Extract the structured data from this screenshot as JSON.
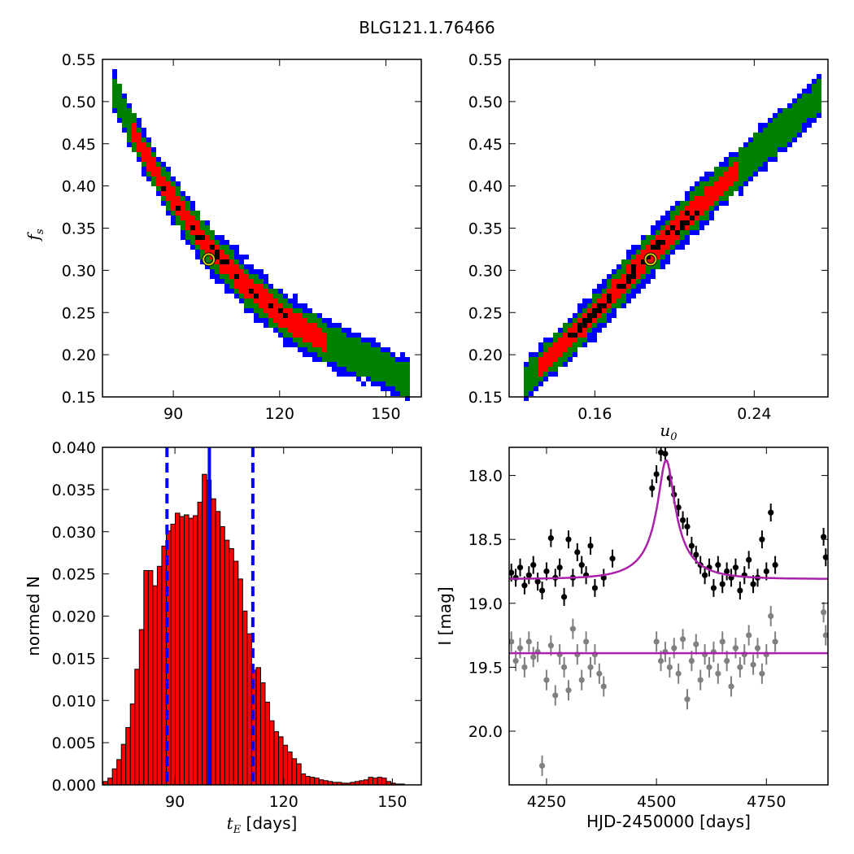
{
  "figure": {
    "title": "BLG121.1.76466"
  },
  "chart_data": [
    {
      "id": "fs_vs_tE",
      "type": "heatmap",
      "xlabel": "",
      "ylabel": "f_s",
      "xlim": [
        70,
        160
      ],
      "ylim": [
        0.15,
        0.55
      ],
      "xticks": [
        90,
        120,
        150
      ],
      "xtick_labels": [
        "90",
        "120",
        "150"
      ],
      "yticks": [
        0.15,
        0.2,
        0.25,
        0.3,
        0.35,
        0.4,
        0.45,
        0.5,
        0.55
      ],
      "ytick_labels": [
        "0.15",
        "0.20",
        "0.25",
        "0.30",
        "0.35",
        "0.40",
        "0.45",
        "0.50",
        "0.55"
      ],
      "ridge": {
        "x": [
          74,
          78,
          82,
          86,
          90,
          94,
          98,
          102,
          106,
          110,
          114,
          118,
          122,
          126,
          130,
          134,
          138,
          142,
          146,
          150,
          154,
          157
        ],
        "y": [
          0.505,
          0.47,
          0.44,
          0.41,
          0.385,
          0.36,
          0.338,
          0.32,
          0.302,
          0.285,
          0.27,
          0.256,
          0.243,
          0.232,
          0.222,
          0.213,
          0.205,
          0.198,
          0.191,
          0.184,
          0.175,
          0.168
        ]
      },
      "regions": [
        {
          "name": "3 sigma",
          "color": "#0000ff"
        },
        {
          "name": "2 sigma",
          "color": "#008000"
        },
        {
          "name": "1 sigma",
          "color": "#ff0000"
        },
        {
          "name": "best",
          "color": "#000000"
        }
      ],
      "best_fit": {
        "x": 100,
        "y": 0.313
      }
    },
    {
      "id": "fs_vs_u0",
      "type": "heatmap",
      "xlabel": "u_0",
      "ylabel": "",
      "xlim": [
        0.117,
        0.277
      ],
      "ylim": [
        0.15,
        0.55
      ],
      "xticks": [
        0.16,
        0.24
      ],
      "xtick_labels": [
        "0.16",
        "0.24"
      ],
      "yticks": [
        0.15,
        0.2,
        0.25,
        0.3,
        0.35,
        0.4,
        0.45,
        0.5,
        0.55
      ],
      "ytick_labels": [
        "0.15",
        "0.20",
        "0.25",
        "0.30",
        "0.35",
        "0.40",
        "0.45",
        "0.50",
        "0.55"
      ],
      "ridge": {
        "x": [
          0.125,
          0.135,
          0.145,
          0.155,
          0.165,
          0.175,
          0.185,
          0.195,
          0.205,
          0.215,
          0.225,
          0.235,
          0.245,
          0.255,
          0.265,
          0.272
        ],
        "y": [
          0.168,
          0.19,
          0.213,
          0.237,
          0.262,
          0.287,
          0.313,
          0.336,
          0.359,
          0.382,
          0.404,
          0.425,
          0.447,
          0.468,
          0.49,
          0.505
        ]
      },
      "regions": [
        {
          "name": "3 sigma",
          "color": "#0000ff"
        },
        {
          "name": "2 sigma",
          "color": "#008000"
        },
        {
          "name": "1 sigma",
          "color": "#ff0000"
        },
        {
          "name": "best",
          "color": "#000000"
        }
      ],
      "best_fit": {
        "x": 0.188,
        "y": 0.313
      }
    },
    {
      "id": "tE_histogram",
      "type": "bar",
      "xlabel": "t_E [days]",
      "ylabel": "normed N",
      "xlim": [
        70,
        158
      ],
      "ylim": [
        0.0,
        0.04
      ],
      "xticks": [
        90,
        120,
        150
      ],
      "xtick_labels": [
        "90",
        "120",
        "150"
      ],
      "yticks": [
        0.0,
        0.005,
        0.01,
        0.015,
        0.02,
        0.025,
        0.03,
        0.035,
        0.04
      ],
      "ytick_labels": [
        "0.000",
        "0.005",
        "0.010",
        "0.015",
        "0.020",
        "0.025",
        "0.030",
        "0.035",
        "0.040"
      ],
      "bin_start": 70.25,
      "bin_width": 1.24,
      "values": [
        0.0004,
        0.0008,
        0.0019,
        0.003,
        0.0048,
        0.0068,
        0.0096,
        0.0137,
        0.0184,
        0.0254,
        0.0254,
        0.0236,
        0.0259,
        0.0283,
        0.0301,
        0.0309,
        0.0322,
        0.0318,
        0.032,
        0.0316,
        0.0319,
        0.0335,
        0.0368,
        0.0361,
        0.0339,
        0.0324,
        0.0306,
        0.029,
        0.028,
        0.0265,
        0.0244,
        0.0206,
        0.0179,
        0.0136,
        0.0139,
        0.0121,
        0.0098,
        0.0076,
        0.0063,
        0.0057,
        0.0047,
        0.0039,
        0.0031,
        0.0025,
        0.0013,
        0.001,
        0.0009,
        0.0008,
        0.0006,
        0.0005,
        0.0004,
        0.0003,
        0.0003,
        0.0002,
        0.0002,
        0.0003,
        0.0004,
        0.0005,
        0.0006,
        0.0009,
        0.0008,
        0.0009,
        0.0008,
        0.0004,
        0.0002,
        0.0001,
        0.0001
      ],
      "bar_color": "#ff0000",
      "lines": [
        {
          "name": "median",
          "x": 99.5,
          "style": "solid",
          "color": "#0000ff"
        },
        {
          "name": "lower",
          "x": 87.8,
          "style": "dashed",
          "color": "#0000ff"
        },
        {
          "name": "upper",
          "x": 111.5,
          "style": "dashed",
          "color": "#0000ff"
        }
      ]
    },
    {
      "id": "light_curve",
      "type": "scatter",
      "xlabel": "HJD-2450000 [days]",
      "ylabel": "I [mag]",
      "xlim": [
        4165,
        4890
      ],
      "ylim": [
        20.42,
        17.78
      ],
      "y_inverted": true,
      "xticks": [
        4250,
        4500,
        4750
      ],
      "xtick_labels": [
        "4250",
        "4500",
        "4750"
      ],
      "yticks": [
        18.0,
        18.5,
        19.0,
        19.5,
        20.0
      ],
      "ytick_labels": [
        "18.0",
        "18.5",
        "19.0",
        "19.5",
        "20.0"
      ],
      "model": {
        "color": "#aa22aa",
        "baseline": 18.81,
        "peak": 17.88,
        "t0": 4522,
        "tE": 100,
        "u0": 0.188
      },
      "model_flat": {
        "color": "#aa22aa",
        "value": 19.39
      },
      "series": [
        {
          "color": "#000000",
          "x": [
            4170,
            4180,
            4190,
            4200,
            4210,
            4220,
            4230,
            4240,
            4250,
            4260,
            4270,
            4280,
            4290,
            4300,
            4310,
            4320,
            4330,
            4340,
            4350,
            4360,
            4380,
            4400,
            4490,
            4500,
            4510,
            4520,
            4530,
            4540,
            4550,
            4560,
            4570,
            4580,
            4590,
            4600,
            4610,
            4620,
            4630,
            4640,
            4650,
            4660,
            4670,
            4680,
            4690,
            4700,
            4710,
            4720,
            4730,
            4740,
            4750,
            4760,
            4770,
            4880,
            4885
          ],
          "y": [
            18.76,
            18.8,
            18.72,
            18.86,
            18.78,
            18.7,
            18.83,
            18.9,
            18.75,
            18.49,
            18.8,
            18.72,
            18.95,
            18.5,
            18.8,
            18.6,
            18.7,
            18.78,
            18.55,
            18.88,
            18.8,
            18.65,
            18.1,
            17.99,
            17.82,
            17.83,
            18.02,
            18.15,
            18.25,
            18.35,
            18.4,
            18.55,
            18.62,
            18.7,
            18.78,
            18.72,
            18.88,
            18.7,
            18.85,
            18.75,
            18.8,
            18.72,
            18.9,
            18.78,
            18.66,
            18.85,
            18.8,
            18.5,
            18.75,
            18.29,
            18.7,
            18.48,
            18.64
          ],
          "err": 0.07
        },
        {
          "color": "#808080",
          "x": [
            4170,
            4180,
            4190,
            4200,
            4210,
            4220,
            4230,
            4240,
            4250,
            4260,
            4270,
            4280,
            4290,
            4300,
            4310,
            4320,
            4330,
            4340,
            4350,
            4360,
            4370,
            4380,
            4500,
            4510,
            4520,
            4530,
            4540,
            4550,
            4560,
            4570,
            4580,
            4590,
            4600,
            4610,
            4620,
            4630,
            4640,
            4650,
            4660,
            4670,
            4680,
            4690,
            4700,
            4710,
            4720,
            4730,
            4740,
            4750,
            4760,
            4770,
            4880,
            4885
          ],
          "y": [
            19.3,
            19.45,
            19.35,
            19.5,
            19.3,
            19.42,
            19.38,
            20.27,
            19.6,
            19.33,
            19.72,
            19.4,
            19.5,
            19.68,
            19.2,
            19.4,
            19.6,
            19.3,
            19.5,
            19.4,
            19.55,
            19.65,
            19.3,
            19.45,
            19.38,
            19.5,
            19.35,
            19.55,
            19.28,
            19.75,
            19.45,
            19.32,
            19.6,
            19.4,
            19.5,
            19.38,
            19.55,
            19.3,
            19.45,
            19.65,
            19.35,
            19.5,
            19.4,
            19.25,
            19.48,
            19.35,
            19.55,
            19.4,
            19.1,
            19.3,
            19.07,
            19.25
          ],
          "err": 0.08
        }
      ]
    }
  ]
}
